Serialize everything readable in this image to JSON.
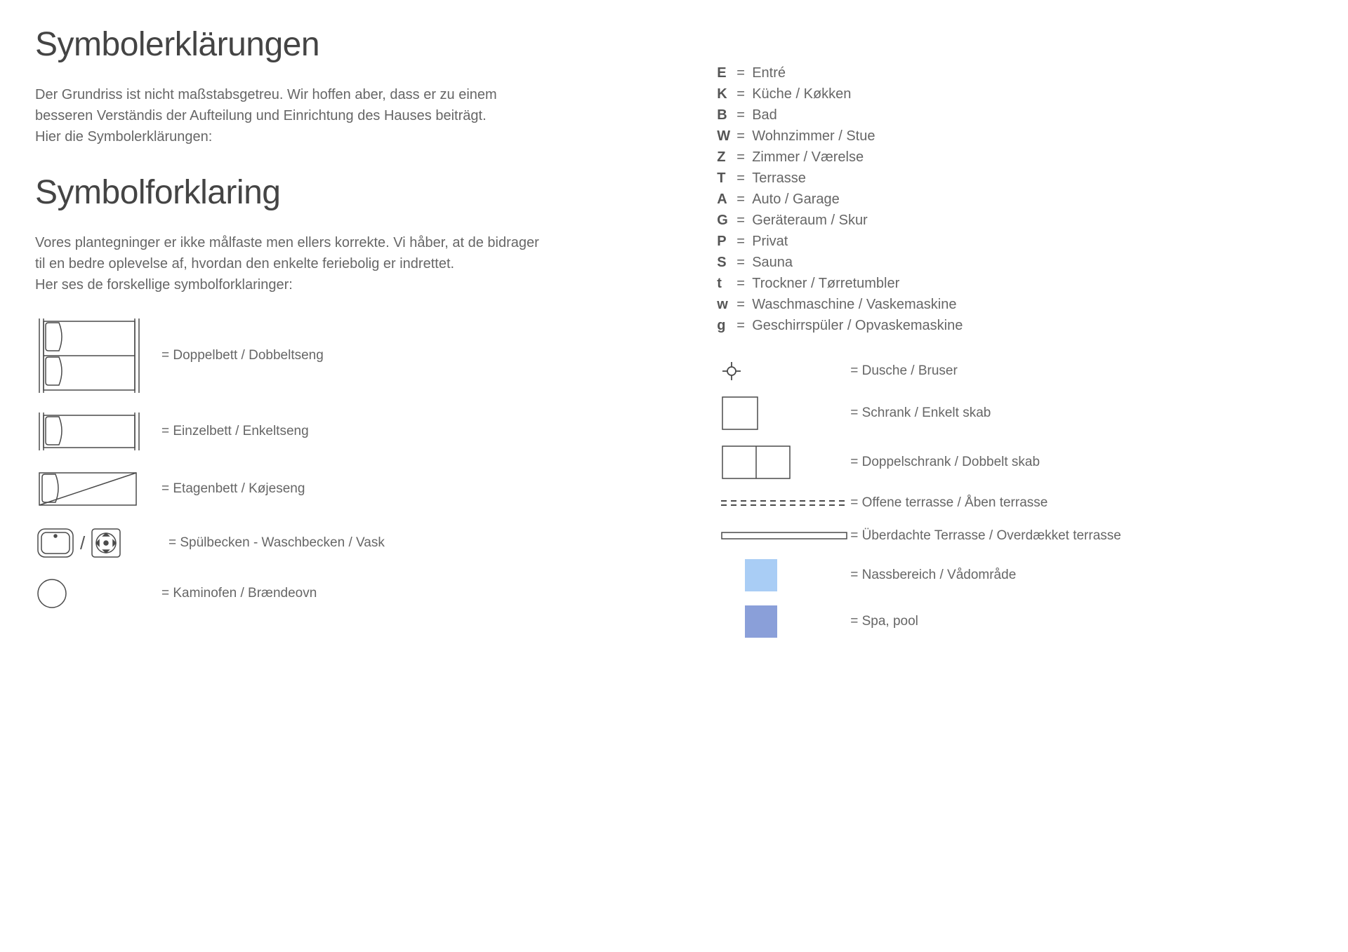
{
  "colors": {
    "text": "#666666",
    "heading": "#444444",
    "stroke": "#4a4a4a",
    "wetarea": "#a9cdf5",
    "spa": "#8a9fd9",
    "background": "#ffffff"
  },
  "left": {
    "heading_de": "Symbolerklärungen",
    "intro_de_l1": "Der Grundriss ist nicht maßstabsgetreu. Wir hoffen aber, dass er zu einem",
    "intro_de_l2": "besseren Verständis der Aufteilung und Einrichtung des Hauses beiträgt.",
    "intro_de_l3": "Hier die Symbolerklärungen:",
    "heading_dk": "Symbolforklaring",
    "intro_dk_l1": "Vores plantegninger er ikke målfaste men ellers korrekte. Vi håber, at de bidrager",
    "intro_dk_l2": "til en bedre oplevelse af, hvordan den enkelte feriebolig er indrettet.",
    "intro_dk_l3": "Her ses de forskellige symbolforklaringer:",
    "symbols": {
      "double_bed": "= Doppelbett / Dobbeltseng",
      "single_bed": "= Einzelbett / Enkeltseng",
      "bunk_bed": "= Etagenbett / Køjeseng",
      "sink": "= Spülbecken - Waschbecken / Vask",
      "sink_sep": "/",
      "stove": "= Kaminofen / Brændeovn"
    }
  },
  "right": {
    "letters": [
      {
        "code": "E",
        "desc": "Entré"
      },
      {
        "code": "K",
        "desc": "Küche / Køkken"
      },
      {
        "code": "B",
        "desc": "Bad"
      },
      {
        "code": "W",
        "desc": "Wohnzimmer / Stue"
      },
      {
        "code": "Z",
        "desc": "Zimmer / Værelse"
      },
      {
        "code": "T",
        "desc": "Terrasse"
      },
      {
        "code": "A",
        "desc": "Auto / Garage"
      },
      {
        "code": "G",
        "desc": "Geräteraum / Skur"
      },
      {
        "code": "P",
        "desc": "Privat"
      },
      {
        "code": "S",
        "desc": "Sauna"
      },
      {
        "code": "t",
        "desc": "Trockner / Tørretumbler"
      },
      {
        "code": "w",
        "desc": "Waschmaschine / Vaskemaskine"
      },
      {
        "code": "g",
        "desc": "Geschirrspüler / Opvaskemaskine"
      }
    ],
    "symbols": {
      "shower": "= Dusche / Bruser",
      "single_cabinet": "= Schrank / Enkelt skab",
      "double_cabinet": "= Doppelschrank / Dobbelt skab",
      "open_terrace": "= Offene terrasse / Åben terrasse",
      "covered_terrace": "= Überdachte Terrasse / Overdækket terrasse",
      "wet_area": "= Nassbereich / Vådområde",
      "spa": "= Spa, pool"
    },
    "equals": "="
  }
}
